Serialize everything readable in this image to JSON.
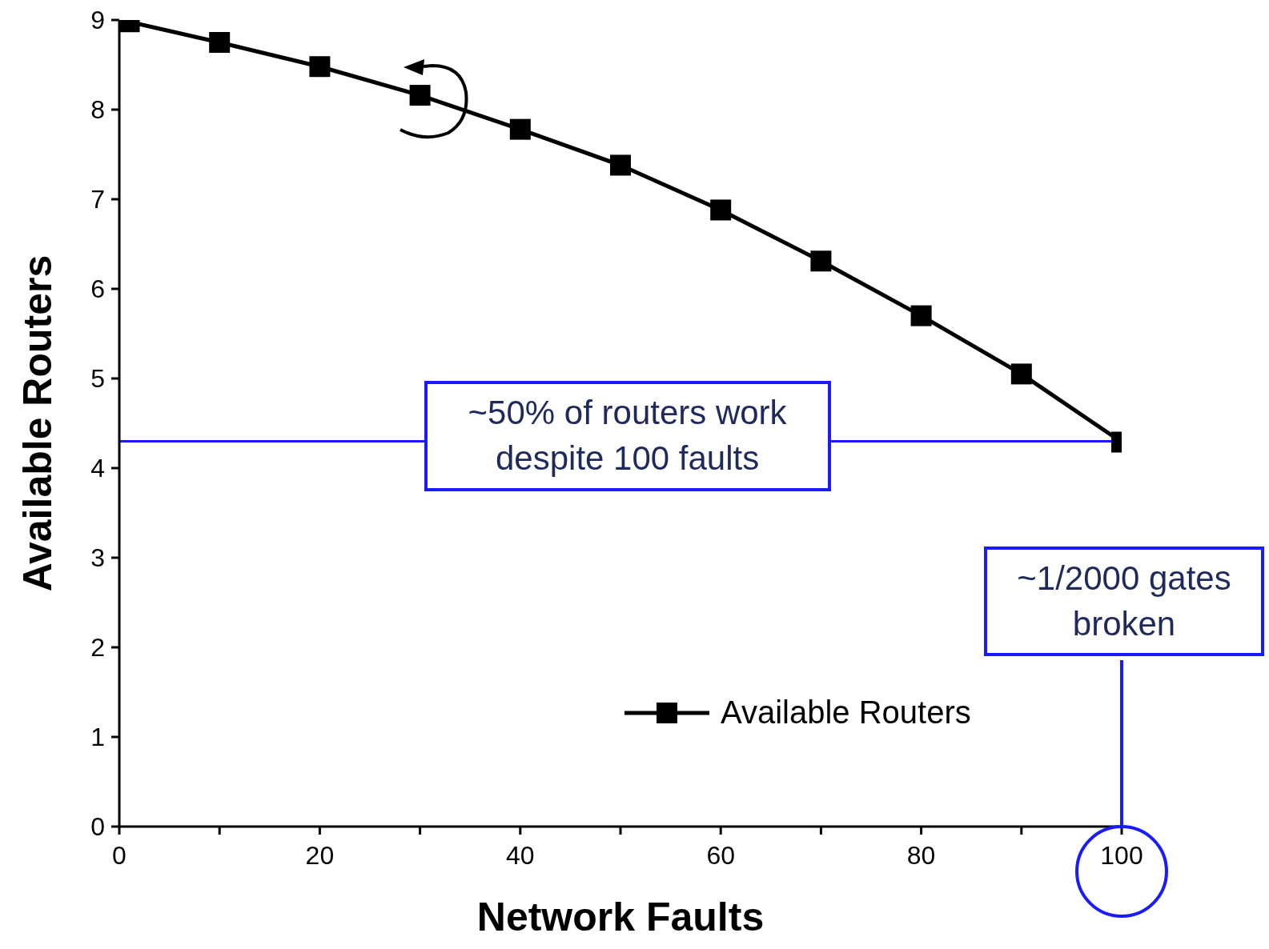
{
  "chart_data": {
    "type": "line",
    "xlabel": "Network Faults",
    "ylabel": "Available Routers",
    "x": [
      1,
      10,
      20,
      30,
      40,
      50,
      60,
      70,
      80,
      90,
      100
    ],
    "series": [
      {
        "name": "Available Routers",
        "color": "#000000",
        "values": [
          8.98,
          8.75,
          8.48,
          8.16,
          7.78,
          7.38,
          6.88,
          6.31,
          5.7,
          5.05,
          4.29
        ]
      }
    ],
    "xlim": [
      0,
      100
    ],
    "ylim": [
      0,
      9
    ],
    "xticks": [
      0,
      {
        "value": 10,
        "label": null
      },
      20,
      {
        "value": 30,
        "label": null
      },
      40,
      {
        "value": 50,
        "label": null
      },
      60,
      {
        "value": 70,
        "label": null
      },
      80,
      {
        "value": 90,
        "label": null
      },
      100
    ],
    "yticks": [
      0,
      1,
      2,
      3,
      4,
      5,
      6,
      7,
      8,
      9
    ],
    "ref_lines": [
      {
        "axis": "y",
        "value": 4.3,
        "label": "~50% of routers work despite 100 faults",
        "color": "#1a1aff"
      }
    ],
    "annotations": [
      "~1/2000 gates broken"
    ],
    "legend": "bottom right",
    "marker": "square",
    "line_style": "solid",
    "grid": false
  }
}
